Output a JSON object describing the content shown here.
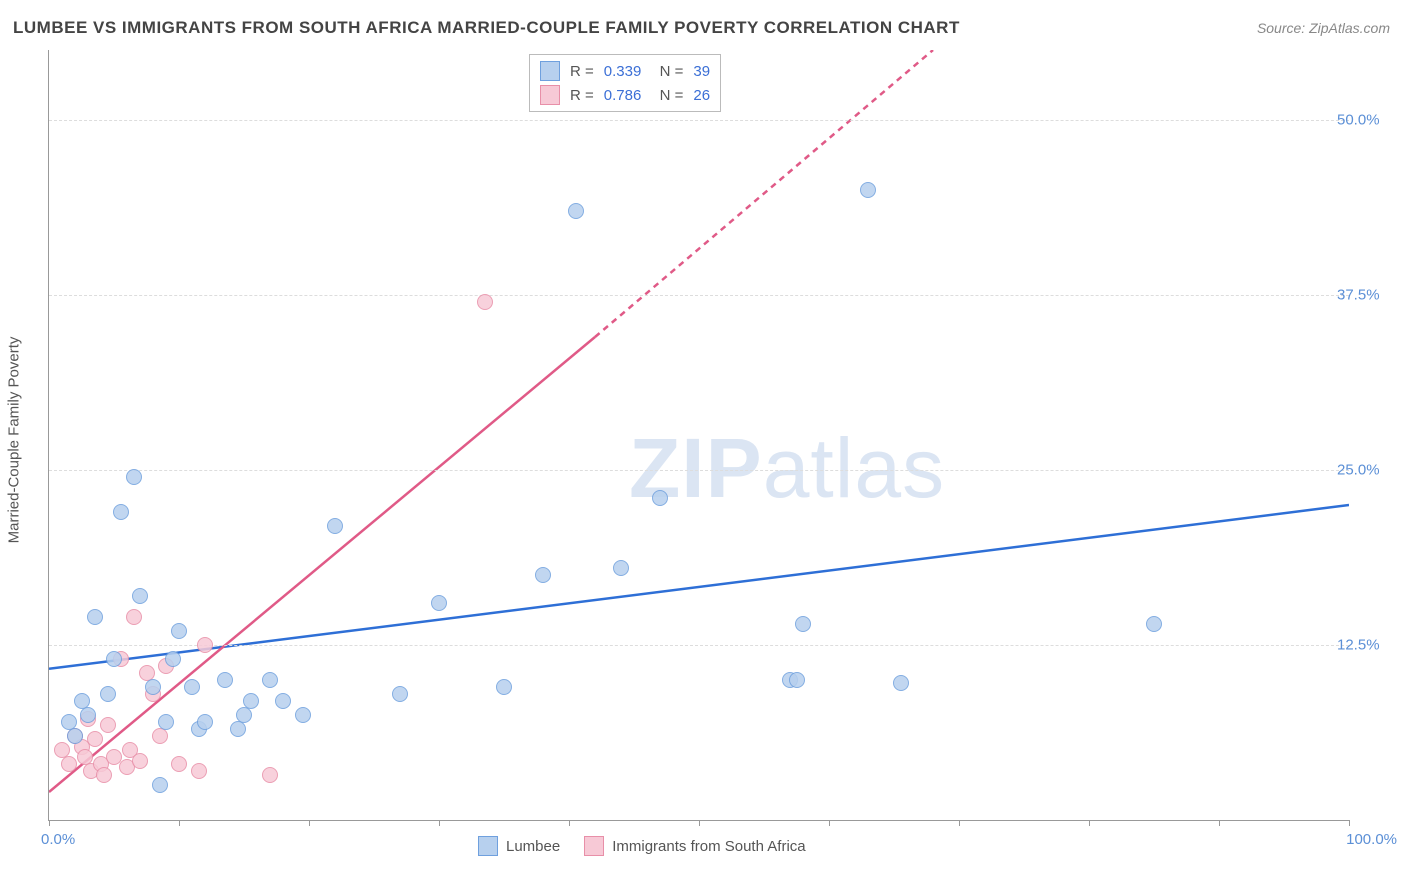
{
  "title": "LUMBEE VS IMMIGRANTS FROM SOUTH AFRICA MARRIED-COUPLE FAMILY POVERTY CORRELATION CHART",
  "source": "Source: ZipAtlas.com",
  "watermark_bold": "ZIP",
  "watermark_light": "atlas",
  "y_axis_title": "Married-Couple Family Poverty",
  "xlim": [
    0,
    100
  ],
  "ylim": [
    0,
    55
  ],
  "x_ticks": [
    0,
    10,
    20,
    30,
    40,
    50,
    60,
    70,
    80,
    90,
    100
  ],
  "y_ticks": [
    12.5,
    25.0,
    37.5,
    50.0
  ],
  "y_tick_labels": [
    "12.5%",
    "25.0%",
    "37.5%",
    "50.0%"
  ],
  "x_label_min": "0.0%",
  "x_label_max": "100.0%",
  "series": {
    "a": {
      "label": "Lumbee",
      "fill": "#b7d0ee",
      "stroke": "#6fa0de",
      "line_color": "#2e6fd6",
      "R": "0.339",
      "N": "39",
      "trend": {
        "x1": 0,
        "y1": 10.8,
        "x2": 100,
        "y2": 22.5
      },
      "points": [
        [
          1.5,
          7.0
        ],
        [
          2.0,
          6.0
        ],
        [
          2.5,
          8.5
        ],
        [
          3.0,
          7.5
        ],
        [
          3.5,
          14.5
        ],
        [
          4.5,
          9.0
        ],
        [
          5.0,
          11.5
        ],
        [
          5.5,
          22.0
        ],
        [
          6.5,
          24.5
        ],
        [
          7.0,
          16.0
        ],
        [
          8.0,
          9.5
        ],
        [
          8.5,
          2.5
        ],
        [
          9.0,
          7.0
        ],
        [
          9.5,
          11.5
        ],
        [
          10.0,
          13.5
        ],
        [
          11.0,
          9.5
        ],
        [
          11.5,
          6.5
        ],
        [
          12.0,
          7.0
        ],
        [
          13.5,
          10.0
        ],
        [
          14.5,
          6.5
        ],
        [
          15.0,
          7.5
        ],
        [
          15.5,
          8.5
        ],
        [
          17.0,
          10.0
        ],
        [
          18.0,
          8.5
        ],
        [
          19.5,
          7.5
        ],
        [
          22.0,
          21.0
        ],
        [
          27.0,
          9.0
        ],
        [
          30.0,
          15.5
        ],
        [
          35.0,
          9.5
        ],
        [
          38.0,
          17.5
        ],
        [
          40.5,
          43.5
        ],
        [
          44.0,
          18.0
        ],
        [
          47.0,
          23.0
        ],
        [
          57.0,
          10.0
        ],
        [
          57.5,
          10.0
        ],
        [
          58.0,
          14.0
        ],
        [
          63.0,
          45.0
        ],
        [
          65.5,
          9.8
        ],
        [
          85.0,
          14.0
        ]
      ]
    },
    "b": {
      "label": "Immigrants from South Africa",
      "fill": "#f7c9d6",
      "stroke": "#e88fa8",
      "line_color": "#e05a87",
      "R": "0.786",
      "N": "26",
      "trend_solid": {
        "x1": 0,
        "y1": 2.0,
        "x2": 42,
        "y2": 34.5
      },
      "trend_dash": {
        "x1": 42,
        "y1": 34.5,
        "x2": 68,
        "y2": 55
      },
      "points": [
        [
          1.0,
          5.0
        ],
        [
          1.5,
          4.0
        ],
        [
          2.0,
          6.0
        ],
        [
          2.5,
          5.2
        ],
        [
          2.8,
          4.5
        ],
        [
          3.0,
          7.2
        ],
        [
          3.2,
          3.5
        ],
        [
          3.5,
          5.8
        ],
        [
          4.0,
          4.0
        ],
        [
          4.2,
          3.2
        ],
        [
          4.5,
          6.8
        ],
        [
          5.0,
          4.5
        ],
        [
          5.5,
          11.5
        ],
        [
          6.0,
          3.8
        ],
        [
          6.2,
          5.0
        ],
        [
          6.5,
          14.5
        ],
        [
          7.0,
          4.2
        ],
        [
          7.5,
          10.5
        ],
        [
          8.0,
          9.0
        ],
        [
          8.5,
          6.0
        ],
        [
          9.0,
          11.0
        ],
        [
          10.0,
          4.0
        ],
        [
          11.5,
          3.5
        ],
        [
          12.0,
          12.5
        ],
        [
          17.0,
          3.2
        ],
        [
          33.5,
          37.0
        ]
      ]
    }
  },
  "grid_color": "#dddddd",
  "background_color": "#ffffff",
  "marker_size": 16
}
